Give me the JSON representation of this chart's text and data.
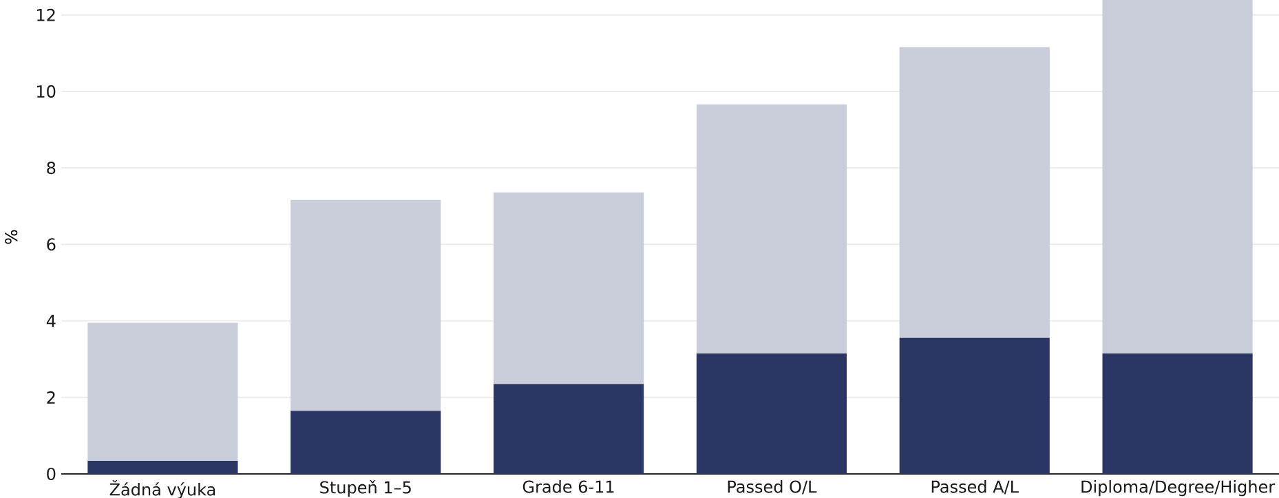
{
  "chart_data": {
    "type": "bar",
    "stacked": true,
    "ylabel": "%",
    "categories": [
      "Žádná výuka",
      "Stupeň 1–5",
      "Grade 6-11",
      "Passed O/L",
      "Passed A/L",
      "Diploma/Degree/Higher"
    ],
    "series": [
      {
        "color": "#2b3664",
        "values": [
          0.34,
          1.65,
          2.35,
          3.15,
          3.56,
          3.15
        ]
      },
      {
        "color": "#c9ccd9",
        "values": [
          3.61,
          5.51,
          5.01,
          6.51,
          7.6,
          9.24
        ]
      }
    ],
    "ylim": [
      0,
      12.39
    ],
    "yticks": [
      0,
      2,
      4,
      6,
      8,
      10,
      12
    ],
    "grid": "y"
  }
}
